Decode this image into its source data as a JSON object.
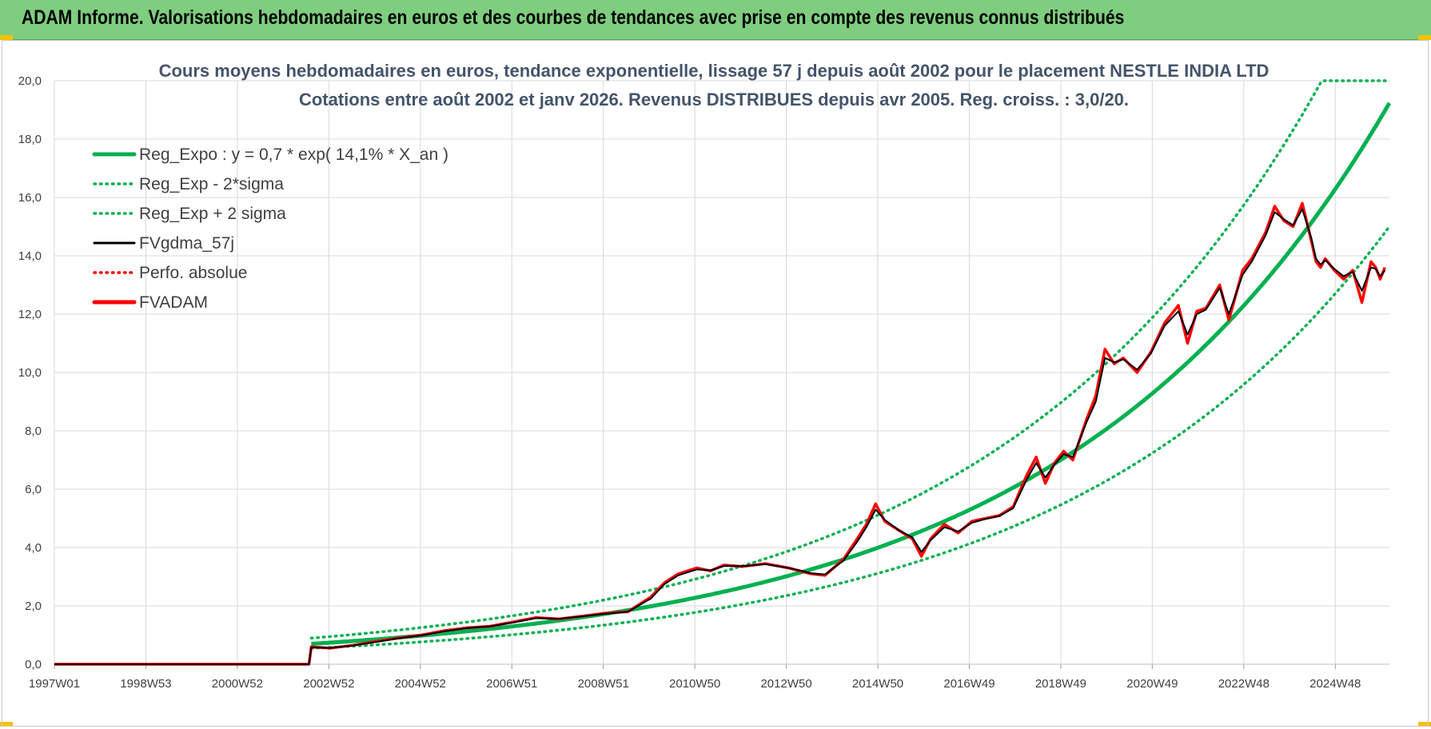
{
  "header": {
    "banner": "ADAM Informe. Valorisations hebdomadaires en euros et des courbes de tendances avec prise en compte des revenus connus distribués"
  },
  "colors": {
    "banner_bg": "#7fcd7f",
    "trend": "#00b050",
    "fvgdma": "#000000",
    "fvadam": "#ff0000",
    "grid": "#d9d9d9",
    "title": "#44546a"
  },
  "chart_data": {
    "type": "line",
    "title": "Cours moyens hebdomadaires en euros, tendance exponentielle, lissage 57 j depuis août 2002 pour le placement NESTLE INDIA LTD",
    "subtitle": "Cotations entre août 2002 et janv 2026.  Revenus DISTRIBUES depuis avr 2005. Reg. croiss. : 3,0/20.",
    "xlabel": "",
    "ylabel": "",
    "ylim": [
      0,
      20
    ],
    "y_ticks": [
      "0,0",
      "2,0",
      "4,0",
      "6,0",
      "8,0",
      "10,0",
      "12,0",
      "14,0",
      "16,0",
      "18,0",
      "20,0"
    ],
    "x_ticks": [
      "1997W01",
      "1998W53",
      "2000W52",
      "2002W52",
      "2004W52",
      "2006W51",
      "2008W51",
      "2010W50",
      "2012W50",
      "2014W50",
      "2016W49",
      "2018W49",
      "2020W49",
      "2022W48",
      "2024W48"
    ],
    "x_range": [
      1997.0,
      2026.1
    ],
    "grid": true,
    "legend_position": "top-left",
    "legend": [
      {
        "label": "Reg_Expo : y = 0,7 * exp( 14,1% *  X_an )",
        "style": "solid-thick",
        "color": "#00b050"
      },
      {
        "label": "Reg_Exp - 2*sigma",
        "style": "dotted",
        "color": "#00b050"
      },
      {
        "label": "Reg_Exp + 2 sigma",
        "style": "dotted",
        "color": "#00b050"
      },
      {
        "label": "FVgdma_57j",
        "style": "solid",
        "color": "#000000"
      },
      {
        "label": "Perfo. absolue",
        "style": "dotted",
        "color": "#ff0000"
      },
      {
        "label": "FVADAM",
        "style": "solid-thick",
        "color": "#ff0000"
      }
    ],
    "regression": {
      "a": 0.7,
      "growth_pct_per_year": 14.1,
      "sigma_factor_low": 0.78,
      "sigma_factor_high": 1.28,
      "cap": 20,
      "start_year": 2002.6,
      "end_year": 2026.1
    },
    "series": [
      {
        "name": "FVADAM",
        "x": [
          1997.0,
          2002.55,
          2002.6,
          2003.0,
          2003.5,
          2004.0,
          2004.5,
          2005.0,
          2005.5,
          2006.0,
          2006.5,
          2007.0,
          2007.5,
          2008.0,
          2008.5,
          2009.0,
          2009.5,
          2010.0,
          2010.3,
          2010.6,
          2011.0,
          2011.3,
          2011.6,
          2012.0,
          2012.5,
          2013.0,
          2013.5,
          2013.8,
          2014.2,
          2014.5,
          2014.7,
          2014.9,
          2015.1,
          2015.4,
          2015.7,
          2015.9,
          2016.1,
          2016.4,
          2016.7,
          2017.0,
          2017.3,
          2017.6,
          2017.9,
          2018.2,
          2018.4,
          2018.6,
          2018.8,
          2019.0,
          2019.2,
          2019.5,
          2019.7,
          2019.9,
          2020.1,
          2020.3,
          2020.6,
          2020.9,
          2021.2,
          2021.5,
          2021.7,
          2021.9,
          2022.1,
          2022.4,
          2022.6,
          2022.9,
          2023.1,
          2023.4,
          2023.6,
          2023.8,
          2024.0,
          2024.2,
          2024.4,
          2024.5,
          2024.6,
          2024.7,
          2024.9,
          2025.1,
          2025.3,
          2025.5,
          2025.7,
          2025.8,
          2025.9,
          2026.0
        ],
        "y": [
          0.0,
          0.0,
          0.6,
          0.55,
          0.65,
          0.78,
          0.9,
          1.0,
          1.15,
          1.25,
          1.3,
          1.45,
          1.6,
          1.55,
          1.65,
          1.75,
          1.8,
          2.3,
          2.8,
          3.1,
          3.3,
          3.2,
          3.4,
          3.35,
          3.45,
          3.3,
          3.1,
          3.05,
          3.6,
          4.3,
          4.8,
          5.5,
          4.9,
          4.6,
          4.3,
          3.7,
          4.3,
          4.8,
          4.5,
          4.9,
          5.0,
          5.1,
          5.4,
          6.5,
          7.1,
          6.2,
          6.9,
          7.3,
          7.0,
          8.4,
          9.2,
          10.8,
          10.3,
          10.5,
          10.0,
          10.7,
          11.7,
          12.3,
          11.0,
          12.1,
          12.2,
          13.0,
          11.8,
          13.5,
          13.9,
          14.8,
          15.7,
          15.2,
          15.0,
          15.8,
          14.5,
          13.8,
          13.6,
          13.9,
          13.5,
          13.2,
          13.5,
          12.4,
          13.8,
          13.6,
          13.2,
          13.6
        ]
      },
      {
        "name": "FVgdma_57j",
        "x": [
          1997.0,
          2002.55,
          2002.6,
          2003.0,
          2003.5,
          2004.0,
          2004.5,
          2005.0,
          2005.5,
          2006.0,
          2006.5,
          2007.0,
          2007.5,
          2008.0,
          2008.5,
          2009.0,
          2009.5,
          2010.0,
          2010.3,
          2010.6,
          2011.0,
          2011.3,
          2011.6,
          2012.0,
          2012.5,
          2013.0,
          2013.5,
          2013.8,
          2014.2,
          2014.5,
          2014.7,
          2014.9,
          2015.1,
          2015.4,
          2015.7,
          2015.9,
          2016.1,
          2016.4,
          2016.7,
          2017.0,
          2017.3,
          2017.6,
          2017.9,
          2018.2,
          2018.4,
          2018.6,
          2018.8,
          2019.0,
          2019.2,
          2019.5,
          2019.7,
          2019.9,
          2020.1,
          2020.3,
          2020.6,
          2020.9,
          2021.2,
          2021.5,
          2021.7,
          2021.9,
          2022.1,
          2022.4,
          2022.6,
          2022.9,
          2023.1,
          2023.4,
          2023.6,
          2023.8,
          2024.0,
          2024.2,
          2024.4,
          2024.5,
          2024.6,
          2024.7,
          2024.9,
          2025.1,
          2025.3,
          2025.5,
          2025.7,
          2025.8,
          2025.9,
          2026.0
        ],
        "y": [
          0.0,
          0.0,
          0.58,
          0.56,
          0.64,
          0.76,
          0.89,
          0.99,
          1.13,
          1.24,
          1.3,
          1.43,
          1.58,
          1.56,
          1.64,
          1.73,
          1.8,
          2.25,
          2.75,
          3.05,
          3.25,
          3.22,
          3.37,
          3.36,
          3.43,
          3.3,
          3.12,
          3.08,
          3.55,
          4.2,
          4.7,
          5.3,
          4.95,
          4.6,
          4.35,
          3.85,
          4.25,
          4.7,
          4.55,
          4.85,
          4.98,
          5.08,
          5.35,
          6.35,
          6.9,
          6.4,
          6.85,
          7.2,
          7.1,
          8.3,
          9.0,
          10.5,
          10.35,
          10.45,
          10.1,
          10.65,
          11.6,
          12.1,
          11.3,
          12.0,
          12.15,
          12.9,
          12.0,
          13.35,
          13.8,
          14.7,
          15.5,
          15.25,
          15.05,
          15.6,
          14.6,
          13.9,
          13.7,
          13.85,
          13.55,
          13.3,
          13.45,
          12.8,
          13.6,
          13.55,
          13.3,
          13.5
        ]
      }
    ]
  }
}
